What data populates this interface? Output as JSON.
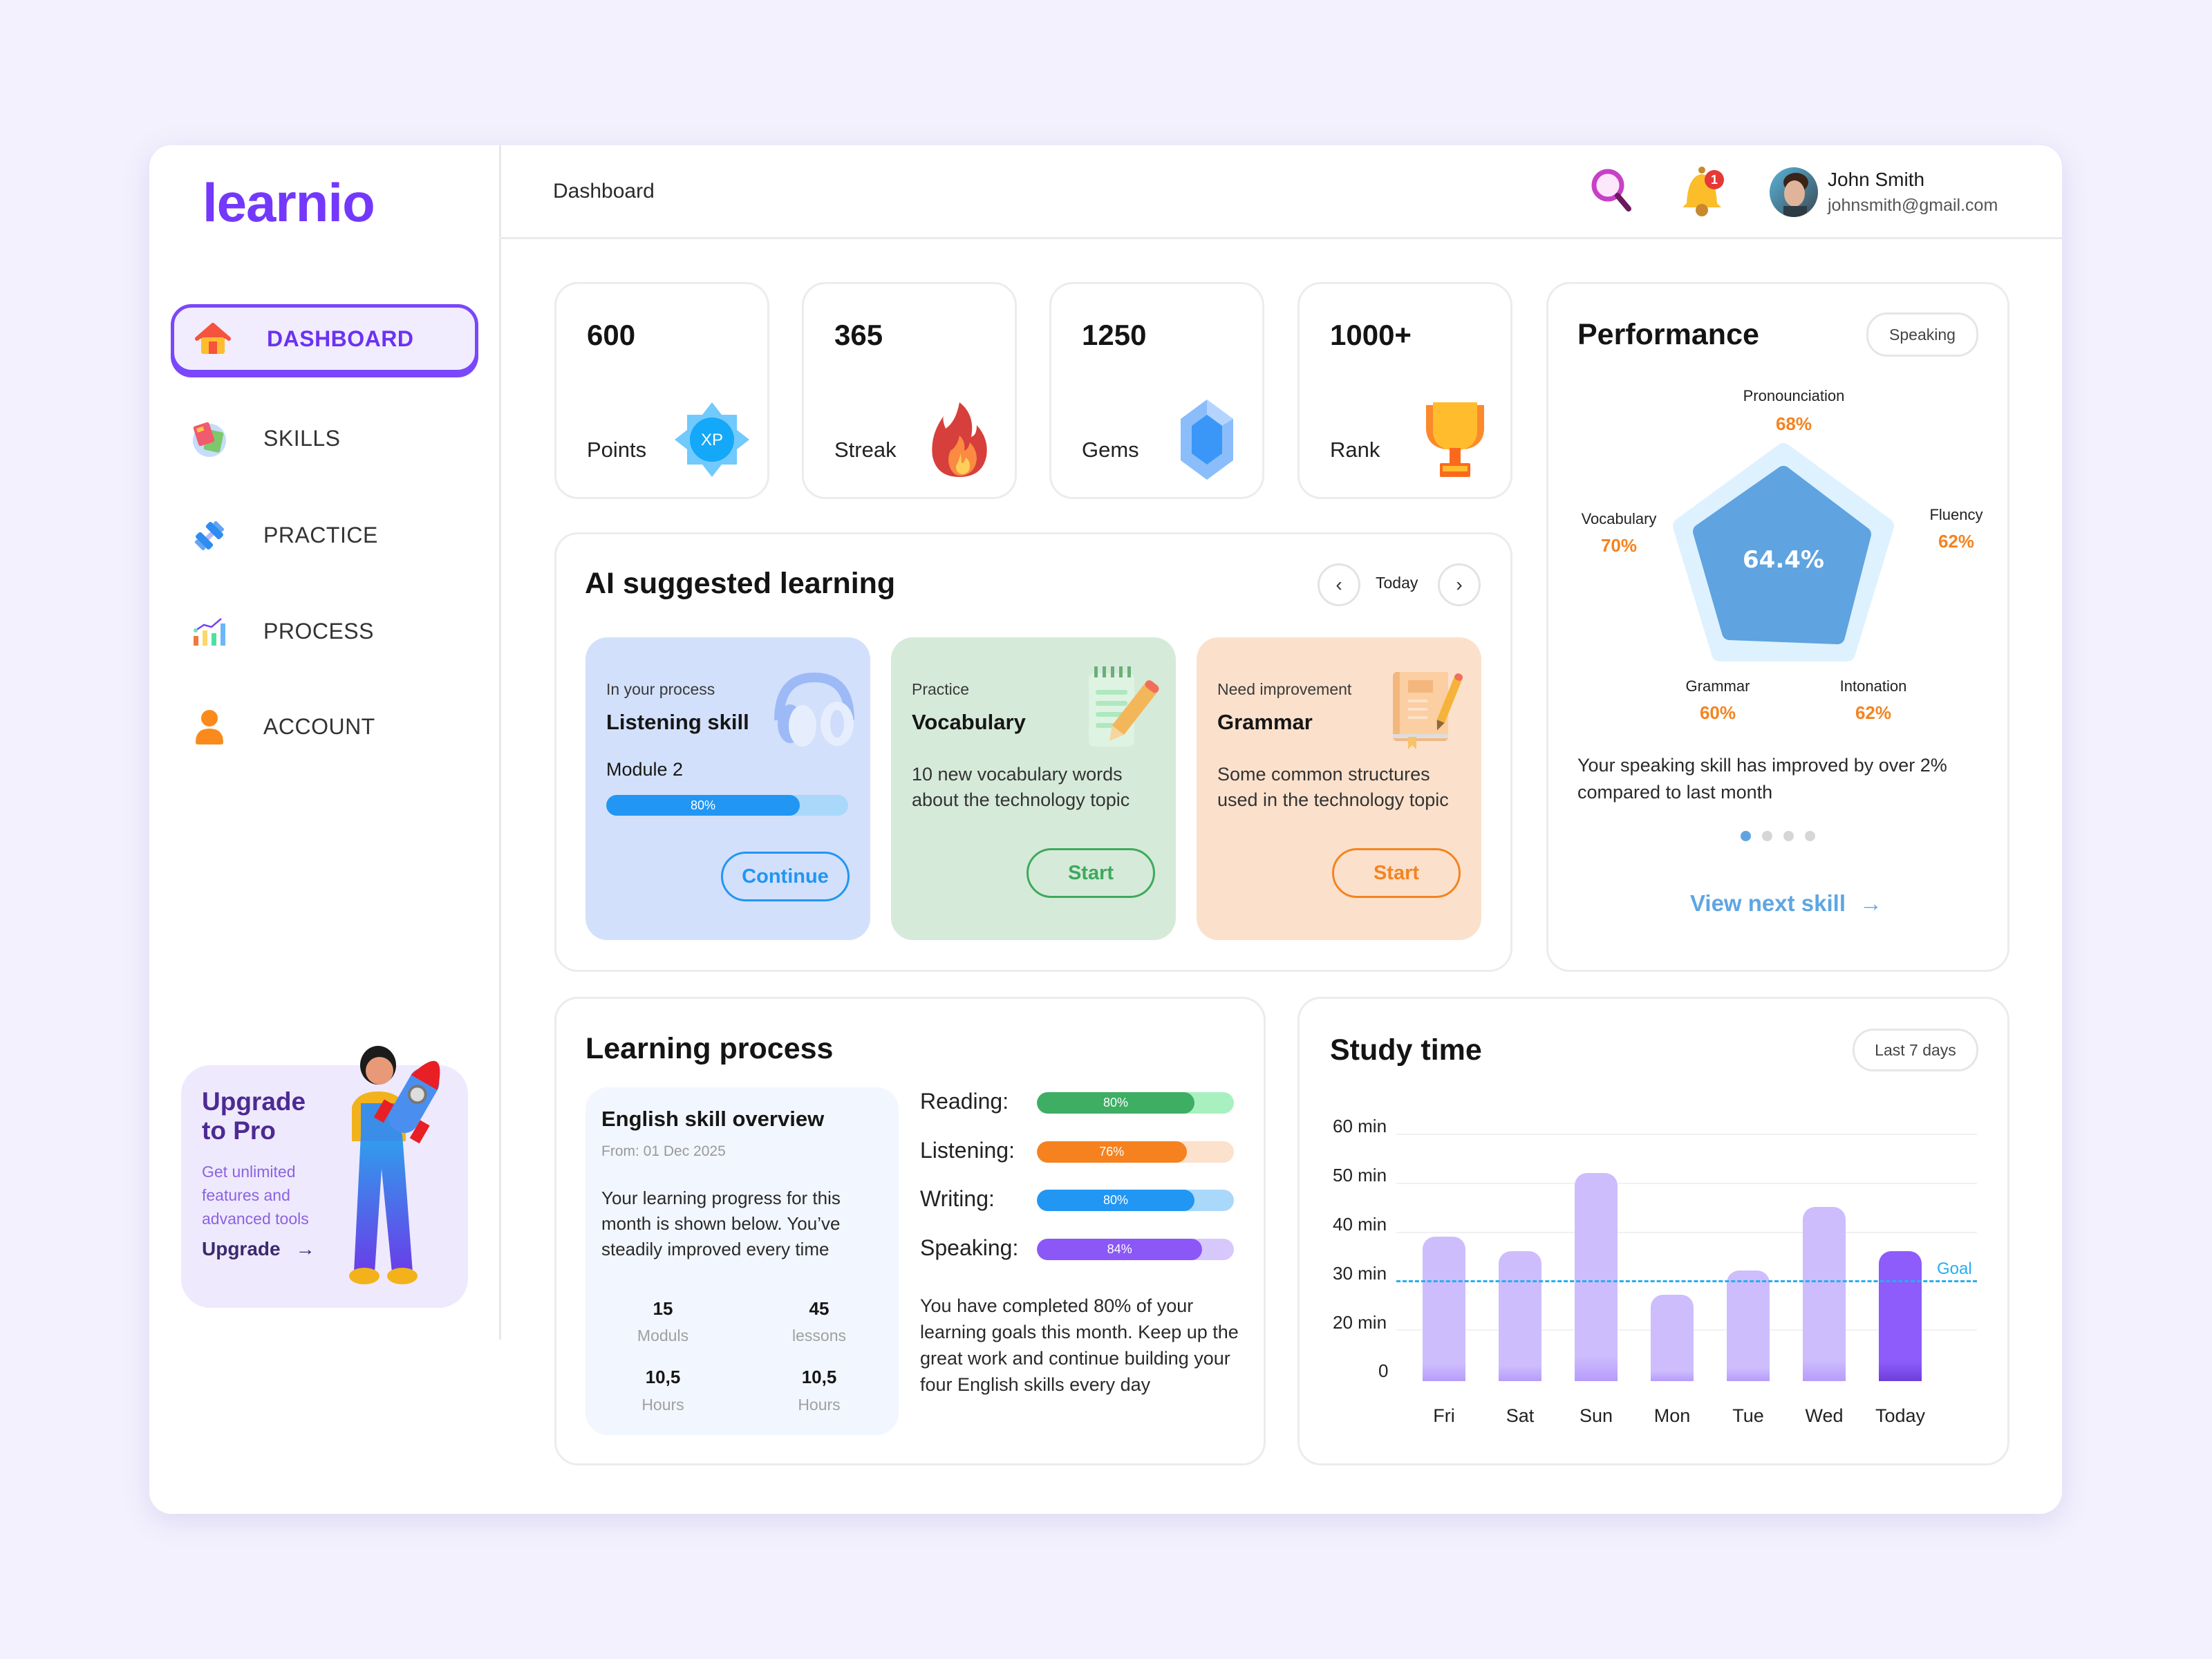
{
  "app": {
    "logo": "learnio"
  },
  "sidebar": {
    "items": [
      {
        "label": "DASHBOARD",
        "icon": "home-icon",
        "active": true
      },
      {
        "label": "SKILLS",
        "icon": "books-icon",
        "active": false
      },
      {
        "label": "PRACTICE",
        "icon": "dumbbell-icon",
        "active": false
      },
      {
        "label": "PROCESS",
        "icon": "bar-chart-icon",
        "active": false
      },
      {
        "label": "ACCOUNT",
        "icon": "user-icon",
        "active": false
      }
    ],
    "upgrade": {
      "title_line1": "Upgrade",
      "title_line2": "to Pro",
      "description": "Get unlimited features and advanced tools",
      "link_label": "Upgrade",
      "arrow": "→"
    }
  },
  "header": {
    "title": "Dashboard",
    "notification_count": "1",
    "user": {
      "name": "John Smith",
      "email": "johnsmith@gmail.com"
    }
  },
  "stats": [
    {
      "value": "600",
      "label": "Points",
      "icon": "xp-badge-icon",
      "badge_text": "XP"
    },
    {
      "value": "365",
      "label": "Streak",
      "icon": "fire-icon"
    },
    {
      "value": "1250",
      "label": "Gems",
      "icon": "gem-icon"
    },
    {
      "value": "1000+",
      "label": "Rank",
      "icon": "trophy-icon"
    }
  ],
  "ai_suggested": {
    "title": "AI suggested learning",
    "date_label": "Today",
    "prev": "‹",
    "next": "›",
    "cards": [
      {
        "kicker": "In your process",
        "title": "Listening skill",
        "module": "Module  2",
        "progress": 80,
        "progress_label": "80%",
        "button": "Continue",
        "accent": "#2196f3",
        "bg": "#d3e0fb"
      },
      {
        "kicker": "Practice",
        "title": "Vocabulary",
        "description": "10 new vocabulary words about the technology topic",
        "button": "Start",
        "accent": "#3daa5c",
        "bg": "#d6ead9"
      },
      {
        "kicker": "Need improvement",
        "title": "Grammar",
        "description": "Some common structures used in the technology topic",
        "button": "Start",
        "accent": "#f5831f",
        "bg": "#fbe1cc"
      }
    ]
  },
  "performance": {
    "title": "Performance",
    "filter": "Speaking",
    "center_value": "64.4%",
    "axes": [
      {
        "label": "Pronounciation",
        "value": "68%"
      },
      {
        "label": "Fluency",
        "value": "62%"
      },
      {
        "label": "Intonation",
        "value": "62%"
      },
      {
        "label": "Grammar",
        "value": "60%"
      },
      {
        "label": "Vocabulary",
        "value": "70%"
      }
    ],
    "summary": "Your speaking skill has improved by over 2% compared to last month",
    "page_dots": 4,
    "active_dot": 0,
    "link_label": "View next skill",
    "arrow": "→"
  },
  "learning_process": {
    "title": "Learning process",
    "overview": {
      "title": "English skill overview",
      "date": "From: 01 Dec 2025",
      "description": "Your learning progress for this month is shown below. You’ve steadily improved every time",
      "stats": [
        {
          "value": "15",
          "unit": "Moduls"
        },
        {
          "value": "45",
          "unit": "lessons"
        },
        {
          "value": "10,5",
          "unit": "Hours"
        },
        {
          "value": "10,5",
          "unit": "Hours"
        }
      ]
    },
    "skills": [
      {
        "label": "Reading:",
        "value": 80,
        "display": "80%",
        "color": "#3dae63",
        "track": "#a8f0c0"
      },
      {
        "label": "Listening:",
        "value": 76,
        "display": "76%",
        "color": "#f5821f",
        "track": "#fce1cc"
      },
      {
        "label": "Writing:",
        "value": 80,
        "display": "80%",
        "color": "#2196f3",
        "track": "#aad8fb"
      },
      {
        "label": "Speaking:",
        "value": 84,
        "display": "84%",
        "color": "#8b57f7",
        "track": "#d7c8fc"
      }
    ],
    "summary": "You have completed 80% of your learning goals this month. Keep up the great work and continue building your four English skills every day"
  },
  "study_time": {
    "title": "Study time",
    "filter": "Last 7 days",
    "goal_label": "Goal"
  },
  "chart_data": {
    "type": "bar",
    "title": "Study time",
    "categories": [
      "Fri",
      "Sat",
      "Sun",
      "Mon",
      "Tue",
      "Wed",
      "Today"
    ],
    "values": [
      39,
      36,
      52,
      27,
      32,
      45,
      36
    ],
    "ylabel": "",
    "xlabel": "",
    "y_ticks": [
      "60 min",
      "50 min",
      "40 min",
      "30 min",
      "20 min",
      "0"
    ],
    "ylim": [
      0,
      60
    ],
    "grid": true,
    "annotations": [
      {
        "type": "hline",
        "y": 30,
        "label": "Goal",
        "style": "dashed",
        "color": "#26aef0"
      }
    ],
    "highlight": "Today",
    "colors": {
      "default": "#cdbdfd",
      "highlight": "#8d5cfb"
    }
  }
}
